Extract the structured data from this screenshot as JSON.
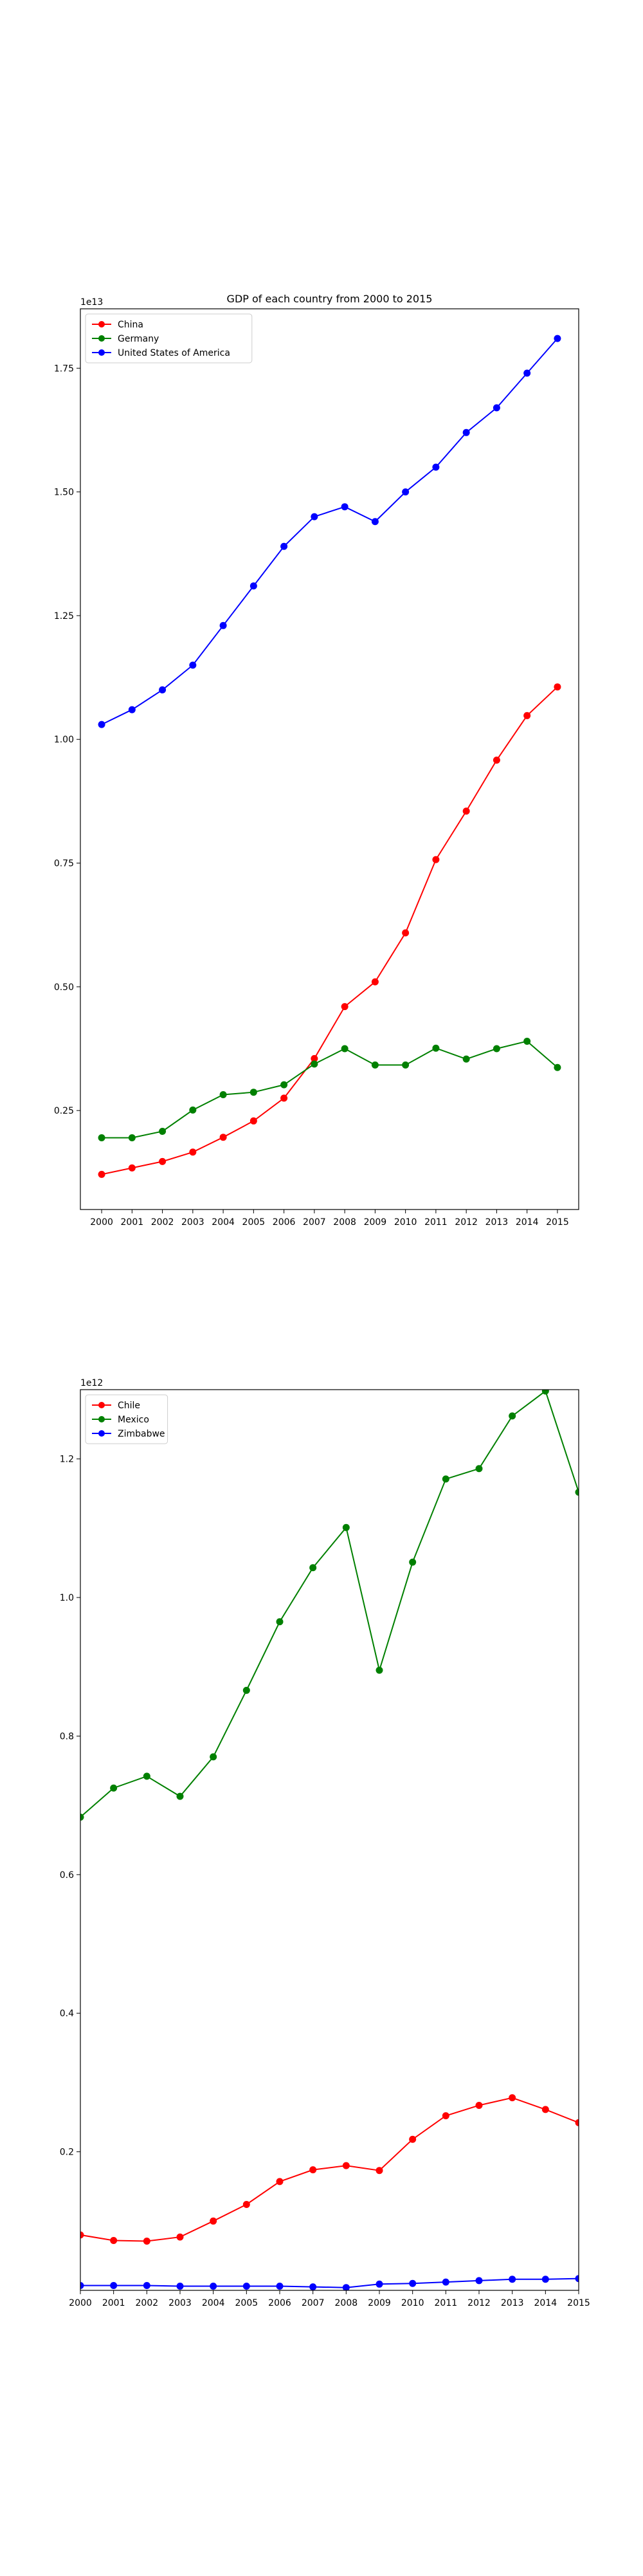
{
  "chart_data": [
    {
      "type": "line",
      "title": "GDP of each country from 2000 to 2015",
      "xlabel": "",
      "ylabel": "",
      "offset_label": "1e13",
      "x": [
        2000,
        2001,
        2002,
        2003,
        2004,
        2005,
        2006,
        2007,
        2008,
        2009,
        2010,
        2011,
        2012,
        2013,
        2014,
        2015
      ],
      "xlim": [
        1999.3,
        2015.7
      ],
      "ylim": [
        0.05,
        1.87
      ],
      "yticks": [
        0.25,
        0.5,
        0.75,
        1.0,
        1.25,
        1.5,
        1.75
      ],
      "ytick_labels": [
        "0.25",
        "0.50",
        "0.75",
        "1.00",
        "1.25",
        "1.50",
        "1.75"
      ],
      "legend_position": "upper-left",
      "grid": false,
      "series": [
        {
          "name": "China",
          "color": "#ff0000",
          "values": [
            0.121,
            0.134,
            0.147,
            0.166,
            0.196,
            0.229,
            0.275,
            0.355,
            0.46,
            0.51,
            0.609,
            0.757,
            0.855,
            0.958,
            1.048,
            1.106
          ]
        },
        {
          "name": "Germany",
          "color": "#008000",
          "values": [
            0.195,
            0.195,
            0.208,
            0.251,
            0.282,
            0.287,
            0.302,
            0.344,
            0.375,
            0.342,
            0.342,
            0.376,
            0.354,
            0.375,
            0.39,
            0.337
          ]
        },
        {
          "name": "United States of America",
          "color": "#0000ff",
          "values": [
            1.03,
            1.06,
            1.1,
            1.15,
            1.23,
            1.31,
            1.39,
            1.45,
            1.47,
            1.44,
            1.5,
            1.55,
            1.62,
            1.67,
            1.74,
            1.81
          ]
        }
      ]
    },
    {
      "type": "line",
      "title": "",
      "xlabel": "",
      "ylabel": "",
      "offset_label": "1e12",
      "x": [
        2000,
        2001,
        2002,
        2003,
        2004,
        2005,
        2006,
        2007,
        2008,
        2009,
        2010,
        2011,
        2012,
        2013,
        2014,
        2015
      ],
      "xlim": [
        2000,
        2015
      ],
      "ylim": [
        0.0,
        1.3
      ],
      "yticks": [
        0.2,
        0.4,
        0.6,
        0.8,
        1.0,
        1.2
      ],
      "ytick_labels": [
        "0.2",
        "0.4",
        "0.6",
        "0.8",
        "1.0",
        "1.2"
      ],
      "legend_position": "upper-left",
      "grid": false,
      "series": [
        {
          "name": "Chile",
          "color": "#ff0000",
          "values": [
            0.08,
            0.072,
            0.071,
            0.077,
            0.1,
            0.124,
            0.157,
            0.174,
            0.18,
            0.173,
            0.218,
            0.252,
            0.267,
            0.278,
            0.261,
            0.242
          ]
        },
        {
          "name": "Mexico",
          "color": "#008000",
          "values": [
            0.683,
            0.725,
            0.742,
            0.713,
            0.77,
            0.866,
            0.965,
            1.043,
            1.101,
            0.895,
            1.051,
            1.171,
            1.186,
            1.262,
            1.298,
            1.152
          ]
        },
        {
          "name": "Zimbabwe",
          "color": "#0000ff",
          "values": [
            0.007,
            0.007,
            0.007,
            0.006,
            0.006,
            0.006,
            0.006,
            0.005,
            0.004,
            0.009,
            0.01,
            0.012,
            0.014,
            0.016,
            0.016,
            0.017
          ]
        }
      ]
    }
  ]
}
